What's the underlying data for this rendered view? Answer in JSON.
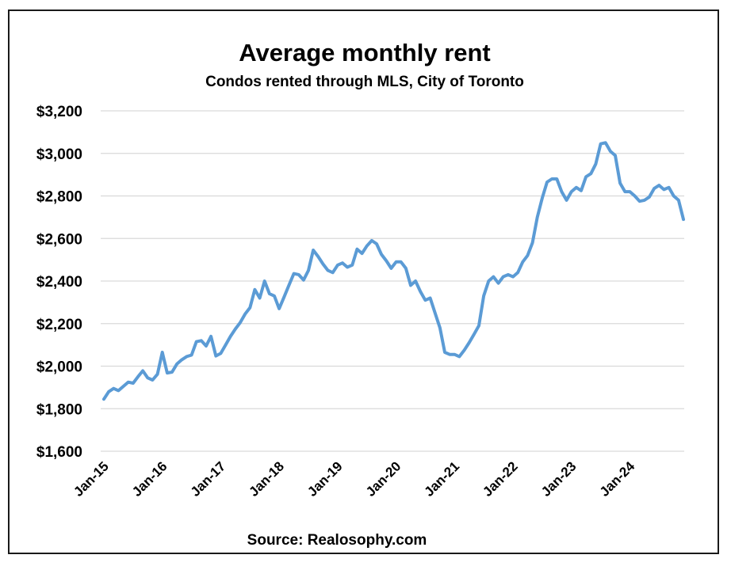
{
  "chart_data": {
    "type": "line",
    "title": "Average monthly rent",
    "subtitle": "Condos rented through MLS, City of Toronto",
    "source": "Source: Realosophy.com",
    "xlabel": "",
    "ylabel": "",
    "ylim": [
      1600,
      3200
    ],
    "y_ticks": [
      3200,
      3000,
      2800,
      2600,
      2400,
      2200,
      2000,
      1800,
      1600
    ],
    "y_tick_labels": [
      "$3,200",
      "$3,000",
      "$2,800",
      "$2,600",
      "$2,400",
      "$2,200",
      "$2,000",
      "$1,800",
      "$1,600"
    ],
    "x_tick_labels": [
      "Jan-15",
      "Jan-16",
      "Jan-17",
      "Jan-18",
      "Jan-19",
      "Jan-20",
      "Jan-21",
      "Jan-22",
      "Jan-23",
      "Jan-24"
    ],
    "grid": true,
    "legend": "none",
    "series": [
      {
        "name": "Average monthly rent",
        "color": "#5b9bd5",
        "start": "Jan-15",
        "frequency": "monthly",
        "values": [
          1845,
          1880,
          1895,
          1885,
          1905,
          1925,
          1920,
          1950,
          1978,
          1945,
          1935,
          1962,
          2065,
          1968,
          1972,
          2010,
          2030,
          2045,
          2052,
          2115,
          2120,
          2095,
          2140,
          2048,
          2060,
          2100,
          2140,
          2175,
          2205,
          2245,
          2275,
          2360,
          2320,
          2400,
          2340,
          2330,
          2270,
          2325,
          2380,
          2435,
          2430,
          2405,
          2450,
          2545,
          2515,
          2480,
          2450,
          2440,
          2475,
          2485,
          2465,
          2475,
          2550,
          2530,
          2565,
          2590,
          2575,
          2525,
          2495,
          2460,
          2490,
          2490,
          2460,
          2380,
          2400,
          2350,
          2310,
          2320,
          2250,
          2180,
          2065,
          2055,
          2055,
          2045,
          2075,
          2110,
          2150,
          2190,
          2330,
          2400,
          2420,
          2390,
          2420,
          2430,
          2420,
          2440,
          2490,
          2520,
          2580,
          2700,
          2790,
          2865,
          2880,
          2880,
          2820,
          2780,
          2820,
          2840,
          2825,
          2890,
          2905,
          2950,
          3045,
          3050,
          3010,
          2990,
          2860,
          2820,
          2820,
          2800,
          2775,
          2780,
          2795,
          2835,
          2850,
          2830,
          2840,
          2800,
          2780,
          2690
        ]
      }
    ]
  }
}
